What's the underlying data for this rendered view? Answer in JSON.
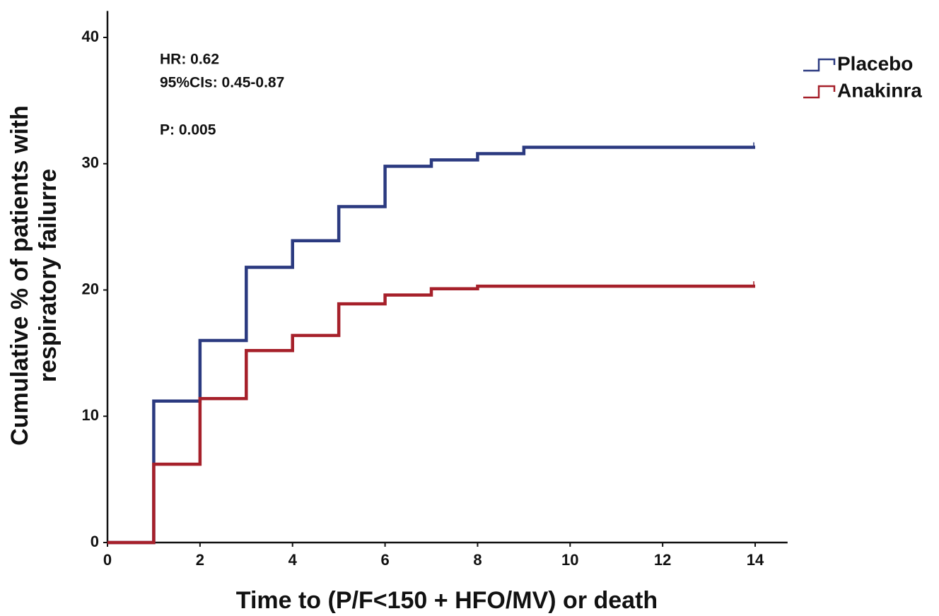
{
  "chart_data": {
    "type": "step",
    "xlabel": "Time to (P/F<150 + HFO/MV) or death",
    "ylabel": [
      "Cumulative % of patients with",
      "respiratory failurre"
    ],
    "annotations": [
      "HR: 0.62",
      "95%CIs:  0.45-0.87",
      "P: 0.005"
    ],
    "x": [
      0,
      1,
      2,
      3,
      4,
      5,
      6,
      7,
      8,
      9,
      14
    ],
    "series": [
      {
        "name": "Placebo",
        "color": "#2b3a80",
        "values": [
          0,
          11.2,
          16.0,
          21.8,
          23.9,
          26.6,
          29.8,
          30.3,
          30.8,
          31.3,
          31.3
        ]
      },
      {
        "name": "Anakinra",
        "color": "#a6202a",
        "values": [
          0,
          6.2,
          11.4,
          15.2,
          16.4,
          18.9,
          19.6,
          20.1,
          20.3,
          20.3,
          20.3
        ]
      }
    ],
    "xlim": [
      0,
      14.7
    ],
    "ylim": [
      0,
      42.1
    ],
    "xticks": [
      0,
      2,
      4,
      6,
      8,
      10,
      12,
      14
    ],
    "yticks": [
      0,
      10,
      20,
      30,
      40
    ],
    "legend": "upper right"
  }
}
